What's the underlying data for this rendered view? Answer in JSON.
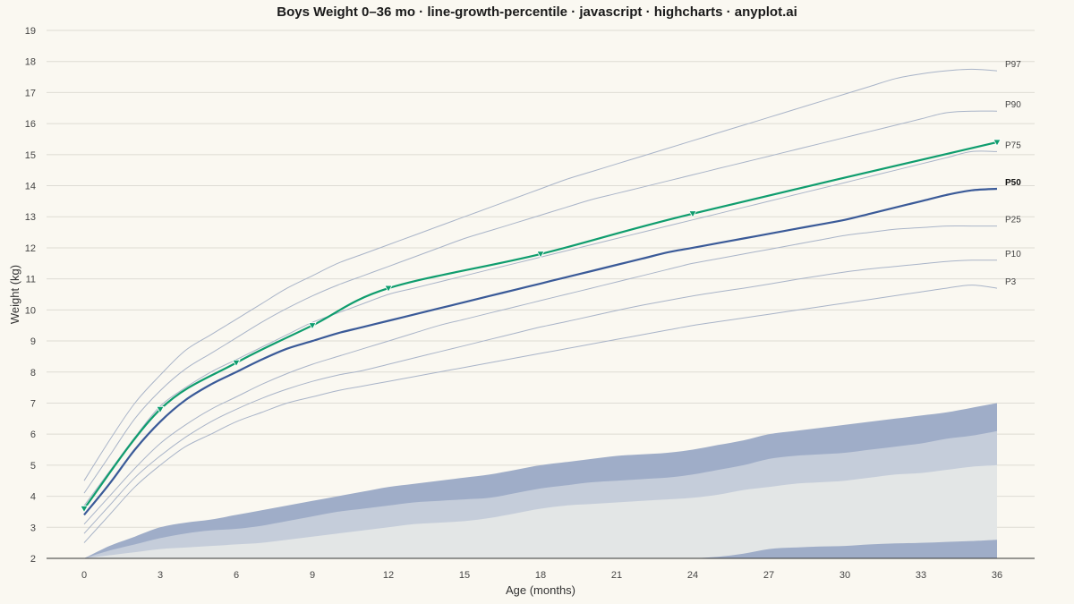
{
  "chart_data": {
    "type": "line",
    "title": "Boys Weight 0–36 mo · line-growth-percentile · javascript · highcharts · anyplot.ai",
    "xlabel": "Age (months)",
    "ylabel": "Weight (kg)",
    "xlim": [
      0,
      36
    ],
    "ylim": [
      2,
      19
    ],
    "x_ticks": [
      0,
      3,
      6,
      9,
      12,
      15,
      18,
      21,
      24,
      27,
      30,
      33,
      36
    ],
    "y_ticks": [
      2,
      3,
      4,
      5,
      6,
      7,
      8,
      9,
      10,
      11,
      12,
      13,
      14,
      15,
      16,
      17,
      18,
      19
    ],
    "grid": "horizontal",
    "x": [
      0,
      1,
      2,
      3,
      4,
      5,
      6,
      7,
      8,
      9,
      10,
      11,
      12,
      13,
      14,
      15,
      16,
      17,
      18,
      19,
      20,
      21,
      22,
      23,
      24,
      25,
      26,
      27,
      28,
      29,
      30,
      31,
      32,
      33,
      34,
      35,
      36
    ],
    "percentiles": [
      {
        "name": "P3",
        "values": [
          2.5,
          3.4,
          4.3,
          5.0,
          5.6,
          6.0,
          6.4,
          6.7,
          7.0,
          7.2,
          7.4,
          7.55,
          7.7,
          7.85,
          8.0,
          8.15,
          8.3,
          8.45,
          8.6,
          8.75,
          8.9,
          9.05,
          9.2,
          9.35,
          9.5,
          9.62,
          9.74,
          9.86,
          9.98,
          10.1,
          10.22,
          10.34,
          10.46,
          10.58,
          10.7,
          10.8,
          10.7
        ]
      },
      {
        "name": "P10",
        "values": [
          2.8,
          3.7,
          4.6,
          5.3,
          5.9,
          6.4,
          6.8,
          7.15,
          7.45,
          7.7,
          7.9,
          8.05,
          8.25,
          8.45,
          8.65,
          8.85,
          9.05,
          9.25,
          9.45,
          9.62,
          9.8,
          9.98,
          10.15,
          10.3,
          10.45,
          10.58,
          10.7,
          10.83,
          10.97,
          11.1,
          11.22,
          11.32,
          11.4,
          11.48,
          11.56,
          11.6,
          11.6
        ]
      },
      {
        "name": "P25",
        "values": [
          3.1,
          4.0,
          4.9,
          5.7,
          6.3,
          6.8,
          7.2,
          7.6,
          7.95,
          8.25,
          8.5,
          8.75,
          9.0,
          9.25,
          9.5,
          9.7,
          9.9,
          10.1,
          10.3,
          10.5,
          10.7,
          10.9,
          11.1,
          11.3,
          11.5,
          11.65,
          11.8,
          11.95,
          12.1,
          12.25,
          12.4,
          12.5,
          12.6,
          12.65,
          12.7,
          12.7,
          12.7
        ]
      },
      {
        "name": "P50",
        "values": [
          3.4,
          4.4,
          5.5,
          6.4,
          7.1,
          7.6,
          8.0,
          8.4,
          8.75,
          9.0,
          9.25,
          9.45,
          9.65,
          9.85,
          10.05,
          10.25,
          10.45,
          10.65,
          10.85,
          11.05,
          11.25,
          11.45,
          11.65,
          11.85,
          12.0,
          12.15,
          12.3,
          12.45,
          12.6,
          12.75,
          12.9,
          13.1,
          13.3,
          13.5,
          13.7,
          13.85,
          13.9
        ]
      },
      {
        "name": "P75",
        "values": [
          3.7,
          4.8,
          5.9,
          6.9,
          7.5,
          8.0,
          8.4,
          8.8,
          9.2,
          9.6,
          9.9,
          10.2,
          10.5,
          10.7,
          10.9,
          11.1,
          11.3,
          11.5,
          11.7,
          11.9,
          12.1,
          12.3,
          12.5,
          12.7,
          12.9,
          13.1,
          13.3,
          13.5,
          13.7,
          13.9,
          14.1,
          14.3,
          14.5,
          14.7,
          14.9,
          15.1,
          15.1
        ]
      },
      {
        "name": "P90",
        "values": [
          4.1,
          5.3,
          6.5,
          7.4,
          8.1,
          8.6,
          9.1,
          9.6,
          10.05,
          10.45,
          10.8,
          11.1,
          11.4,
          11.7,
          12.0,
          12.3,
          12.55,
          12.8,
          13.05,
          13.3,
          13.55,
          13.75,
          13.95,
          14.15,
          14.35,
          14.55,
          14.75,
          14.95,
          15.15,
          15.35,
          15.55,
          15.75,
          15.95,
          16.15,
          16.35,
          16.4,
          16.4
        ]
      },
      {
        "name": "P97",
        "values": [
          4.5,
          5.8,
          7.0,
          7.9,
          8.7,
          9.2,
          9.7,
          10.2,
          10.7,
          11.1,
          11.5,
          11.8,
          12.1,
          12.4,
          12.7,
          13.0,
          13.3,
          13.6,
          13.9,
          14.2,
          14.45,
          14.7,
          14.95,
          15.2,
          15.45,
          15.7,
          15.95,
          16.2,
          16.45,
          16.7,
          16.95,
          17.2,
          17.45,
          17.6,
          17.7,
          17.75,
          17.7
        ]
      }
    ],
    "bands": [
      {
        "name": "outer",
        "color": "#9FADC8",
        "low": [
          2.0,
          2.0,
          2.0,
          2.0,
          2.0,
          2.0,
          2.0,
          2.0,
          2.0,
          2.0,
          2.0,
          2.0,
          2.0,
          2.0,
          2.0,
          2.0,
          2.0,
          2.0,
          2.0,
          2.0,
          2.0,
          2.0,
          2.0,
          2.0,
          2.0,
          2.0,
          2.0,
          2.0,
          2.0,
          2.0,
          2.0,
          2.0,
          2.0,
          2.0,
          2.0,
          2.0,
          2.0
        ],
        "high": [
          2.0,
          2.4,
          2.7,
          3.0,
          3.15,
          3.25,
          3.4,
          3.55,
          3.7,
          3.85,
          4.0,
          4.15,
          4.3,
          4.4,
          4.5,
          4.6,
          4.7,
          4.85,
          5.0,
          5.1,
          5.2,
          5.3,
          5.35,
          5.4,
          5.5,
          5.65,
          5.8,
          6.0,
          6.1,
          6.2,
          6.3,
          6.4,
          6.5,
          6.6,
          6.7,
          6.85,
          7.0
        ]
      },
      {
        "name": "middle",
        "color": "#C5CDDA",
        "low": [
          2.0,
          2.0,
          2.0,
          2.0,
          2.0,
          2.0,
          2.0,
          2.0,
          2.0,
          2.0,
          2.0,
          2.0,
          2.0,
          2.0,
          2.0,
          2.0,
          2.0,
          2.0,
          2.0,
          2.0,
          2.0,
          2.0,
          2.0,
          2.0,
          2.0,
          2.0,
          2.0,
          2.0,
          2.0,
          2.0,
          2.0,
          2.0,
          2.0,
          2.0,
          2.0,
          2.0,
          2.0
        ],
        "high": [
          2.0,
          2.25,
          2.45,
          2.65,
          2.8,
          2.9,
          2.95,
          3.05,
          3.2,
          3.35,
          3.5,
          3.6,
          3.7,
          3.8,
          3.85,
          3.9,
          3.95,
          4.1,
          4.25,
          4.35,
          4.45,
          4.5,
          4.55,
          4.6,
          4.7,
          4.85,
          5.0,
          5.2,
          5.3,
          5.35,
          5.4,
          5.5,
          5.6,
          5.7,
          5.85,
          5.95,
          6.1
        ]
      },
      {
        "name": "inner",
        "color": "#E3E6E6",
        "low": [
          2.0,
          2.0,
          2.0,
          2.0,
          2.0,
          2.0,
          2.0,
          2.0,
          2.0,
          2.0,
          2.0,
          2.0,
          2.0,
          2.0,
          2.0,
          2.0,
          2.0,
          2.0,
          2.0,
          2.0,
          2.0,
          2.0,
          2.0,
          2.0,
          2.0,
          2.0,
          2.0,
          2.0,
          2.0,
          2.0,
          2.0,
          2.0,
          2.0,
          2.0,
          2.0,
          2.0,
          2.0
        ],
        "high": [
          2.0,
          2.1,
          2.2,
          2.3,
          2.35,
          2.4,
          2.45,
          2.5,
          2.6,
          2.7,
          2.8,
          2.9,
          3.0,
          3.1,
          3.15,
          3.2,
          3.3,
          3.45,
          3.6,
          3.7,
          3.75,
          3.8,
          3.85,
          3.9,
          3.95,
          4.05,
          4.2,
          4.3,
          4.4,
          4.45,
          4.5,
          4.6,
          4.7,
          4.75,
          4.85,
          4.95,
          5.0
        ]
      },
      {
        "name": "base",
        "color": "#9FADC8",
        "low": [
          2.0,
          2.0,
          2.0,
          2.0,
          2.0,
          2.0,
          2.0,
          2.0,
          2.0,
          2.0,
          2.0,
          2.0,
          2.0,
          2.0,
          2.0,
          2.0,
          2.0,
          2.0,
          2.0,
          2.0,
          2.0,
          2.0,
          2.0,
          2.0,
          2.0,
          2.0,
          2.0,
          2.0,
          2.0,
          2.0,
          2.0,
          2.0,
          2.0,
          2.0,
          2.0,
          2.0,
          2.0
        ],
        "high": [
          2.0,
          2.0,
          2.0,
          2.0,
          2.0,
          2.0,
          2.0,
          2.0,
          2.0,
          2.0,
          2.0,
          2.0,
          2.0,
          2.0,
          2.0,
          2.0,
          2.0,
          2.0,
          2.0,
          2.0,
          2.0,
          2.0,
          2.0,
          2.0,
          2.0,
          2.05,
          2.15,
          2.3,
          2.35,
          2.38,
          2.4,
          2.45,
          2.48,
          2.5,
          2.53,
          2.56,
          2.6
        ]
      }
    ],
    "patient": {
      "color": "#0F9D6E",
      "x": [
        0,
        3,
        6,
        9,
        12,
        18,
        24,
        36
      ],
      "values": [
        3.6,
        6.8,
        8.3,
        9.5,
        10.7,
        11.8,
        13.1,
        15.4
      ]
    },
    "percentile_line_color": "#A9B4C8",
    "median_color": "#3A5A98"
  }
}
